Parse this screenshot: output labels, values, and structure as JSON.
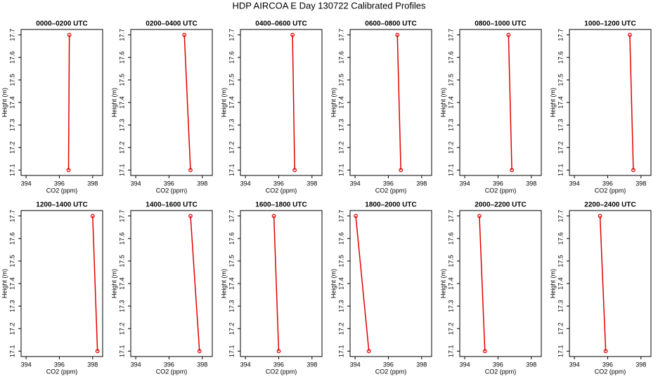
{
  "title": "HDP AIRCOA E  Day 130722  Calibrated Profiles",
  "chart_data": [
    {
      "type": "line",
      "title": "0000–0200 UTC",
      "x_label": "CO2 (ppm)",
      "y_label": "Height (m)",
      "color": "#e00000",
      "x": [
        396.55,
        396.6
      ],
      "values": [
        17.1,
        17.7
      ],
      "xlim": [
        393.7,
        398.6
      ],
      "xticks": [
        394,
        396,
        398
      ],
      "ylim": [
        17.076,
        17.724
      ],
      "yticks": [
        17.1,
        17.2,
        17.3,
        17.4,
        17.5,
        17.6,
        17.7
      ]
    },
    {
      "type": "line",
      "title": "0200–0400 UTC",
      "x_label": "CO2 (ppm)",
      "y_label": "Height (m)",
      "color": "#e00000",
      "x": [
        397.29,
        396.92
      ],
      "values": [
        17.1,
        17.7
      ],
      "xlim": [
        393.7,
        398.6
      ],
      "xticks": [
        394,
        396,
        398
      ],
      "ylim": [
        17.076,
        17.724
      ],
      "yticks": [
        17.1,
        17.2,
        17.3,
        17.4,
        17.5,
        17.6,
        17.7
      ]
    },
    {
      "type": "line",
      "title": "0400–0600 UTC",
      "x_label": "CO2 (ppm)",
      "y_label": "Height (m)",
      "color": "#e00000",
      "x": [
        396.96,
        396.83
      ],
      "values": [
        17.1,
        17.7
      ],
      "xlim": [
        393.7,
        398.6
      ],
      "xticks": [
        394,
        396,
        398
      ],
      "ylim": [
        17.076,
        17.724
      ],
      "yticks": [
        17.1,
        17.2,
        17.3,
        17.4,
        17.5,
        17.6,
        17.7
      ]
    },
    {
      "type": "line",
      "title": "0600–0800 UTC",
      "x_label": "CO2 (ppm)",
      "y_label": "Height (m)",
      "color": "#e00000",
      "x": [
        396.75,
        396.54
      ],
      "values": [
        17.1,
        17.7
      ],
      "xlim": [
        393.7,
        398.6
      ],
      "xticks": [
        394,
        396,
        398
      ],
      "ylim": [
        17.076,
        17.724
      ],
      "yticks": [
        17.1,
        17.2,
        17.3,
        17.4,
        17.5,
        17.6,
        17.7
      ]
    },
    {
      "type": "line",
      "title": "0800–1000 UTC",
      "x_label": "CO2 (ppm)",
      "y_label": "Height (m)",
      "color": "#e00000",
      "x": [
        396.83,
        396.63
      ],
      "values": [
        17.1,
        17.7
      ],
      "xlim": [
        393.7,
        398.6
      ],
      "xticks": [
        394,
        396,
        398
      ],
      "ylim": [
        17.076,
        17.724
      ],
      "yticks": [
        17.1,
        17.2,
        17.3,
        17.4,
        17.5,
        17.6,
        17.7
      ]
    },
    {
      "type": "line",
      "title": "1000–1200 UTC",
      "x_label": "CO2 (ppm)",
      "y_label": "Height (m)",
      "color": "#e00000",
      "x": [
        397.54,
        397.33
      ],
      "values": [
        17.1,
        17.7
      ],
      "xlim": [
        393.7,
        398.6
      ],
      "xticks": [
        394,
        396,
        398
      ],
      "ylim": [
        17.076,
        17.724
      ],
      "yticks": [
        17.1,
        17.2,
        17.3,
        17.4,
        17.5,
        17.6,
        17.7
      ]
    },
    {
      "type": "line",
      "title": "1200–1400 UTC",
      "x_label": "CO2 (ppm)",
      "y_label": "Height (m)",
      "color": "#e00000",
      "x": [
        398.29,
        398.0
      ],
      "values": [
        17.1,
        17.7
      ],
      "xlim": [
        393.7,
        398.6
      ],
      "xticks": [
        394,
        396,
        398
      ],
      "ylim": [
        17.076,
        17.724
      ],
      "yticks": [
        17.1,
        17.2,
        17.3,
        17.4,
        17.5,
        17.6,
        17.7
      ]
    },
    {
      "type": "line",
      "title": "1400–1600 UTC",
      "x_label": "CO2 (ppm)",
      "y_label": "Height (m)",
      "color": "#e00000",
      "x": [
        397.83,
        397.29
      ],
      "values": [
        17.1,
        17.7
      ],
      "xlim": [
        393.7,
        398.6
      ],
      "xticks": [
        394,
        396,
        398
      ],
      "ylim": [
        17.076,
        17.724
      ],
      "yticks": [
        17.1,
        17.2,
        17.3,
        17.4,
        17.5,
        17.6,
        17.7
      ]
    },
    {
      "type": "line",
      "title": "1600–1800 UTC",
      "x_label": "CO2 (ppm)",
      "y_label": "Height (m)",
      "color": "#e00000",
      "x": [
        396.0,
        395.71
      ],
      "values": [
        17.1,
        17.7
      ],
      "xlim": [
        393.7,
        398.6
      ],
      "xticks": [
        394,
        396,
        398
      ],
      "ylim": [
        17.076,
        17.724
      ],
      "yticks": [
        17.1,
        17.2,
        17.3,
        17.4,
        17.5,
        17.6,
        17.7
      ]
    },
    {
      "type": "line",
      "title": "1800–2000 UTC",
      "x_label": "CO2 (ppm)",
      "y_label": "Height (m)",
      "color": "#e00000",
      "x": [
        394.83,
        394.04
      ],
      "values": [
        17.1,
        17.7
      ],
      "xlim": [
        393.7,
        398.6
      ],
      "xticks": [
        394,
        396,
        398
      ],
      "ylim": [
        17.076,
        17.724
      ],
      "yticks": [
        17.1,
        17.2,
        17.3,
        17.4,
        17.5,
        17.6,
        17.7
      ]
    },
    {
      "type": "line",
      "title": "2000–2200 UTC",
      "x_label": "CO2 (ppm)",
      "y_label": "Height (m)",
      "color": "#e00000",
      "x": [
        395.21,
        394.88
      ],
      "values": [
        17.1,
        17.7
      ],
      "xlim": [
        393.7,
        398.6
      ],
      "xticks": [
        394,
        396,
        398
      ],
      "ylim": [
        17.076,
        17.724
      ],
      "yticks": [
        17.1,
        17.2,
        17.3,
        17.4,
        17.5,
        17.6,
        17.7
      ]
    },
    {
      "type": "line",
      "title": "2200–2400 UTC",
      "x_label": "CO2 (ppm)",
      "y_label": "Height (m)",
      "color": "#e00000",
      "x": [
        395.88,
        395.54
      ],
      "values": [
        17.1,
        17.7
      ],
      "xlim": [
        393.7,
        398.6
      ],
      "xticks": [
        394,
        396,
        398
      ],
      "ylim": [
        17.076,
        17.724
      ],
      "yticks": [
        17.1,
        17.2,
        17.3,
        17.4,
        17.5,
        17.6,
        17.7
      ]
    }
  ]
}
